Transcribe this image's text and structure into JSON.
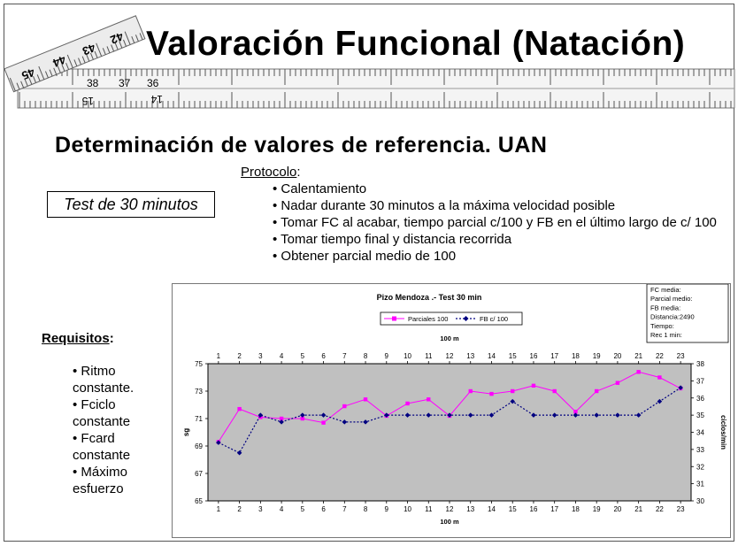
{
  "slide": {
    "title": "Valoración Funcional (Natación)",
    "subtitle": "Determinación de valores de referencia. UAN",
    "test_box": "Test de 30 minutos",
    "protocolo_heading": "Protocolo",
    "protocolo_colon": ":",
    "protocolo_items": [
      "Calentamiento",
      "Nadar durante 30 minutos a la máxima velocidad posible",
      "Tomar FC al acabar, tiempo parcial c/100 y FB en el último largo de c/ 100",
      "Tomar tiempo final y distancia recorrida",
      "Obtener parcial medio de 100"
    ],
    "requisitos_heading": "Requisitos",
    "requisitos_colon": ":",
    "requisitos_items": [
      "Ritmo constante.",
      "Fciclo constante",
      "Fcard constante",
      "Máximo esfuerzo"
    ],
    "ruler_numbers": [
      "45",
      "44",
      "43",
      "42",
      "38",
      "37",
      "36",
      "15",
      "14"
    ]
  },
  "chart_data": {
    "type": "line",
    "title": "Pizo Mendoza .- Test 30 min",
    "info_box": [
      "FC media:",
      "Parcial medio:",
      "FB media:",
      "Distancia:2490",
      "Tiempo:",
      "Rec 1 min:"
    ],
    "xlabel_top": "100 m",
    "xlabel_bottom": "100 m",
    "ylabel_left": "sg",
    "ylabel_right": "ciclos/min",
    "x": [
      1,
      2,
      3,
      4,
      5,
      6,
      7,
      8,
      9,
      10,
      11,
      12,
      13,
      14,
      15,
      16,
      17,
      18,
      19,
      20,
      21,
      22,
      23
    ],
    "ylim_left": [
      65,
      75
    ],
    "yticks_left": [
      65,
      67,
      69,
      71,
      73,
      75
    ],
    "ylim_right": [
      30,
      38
    ],
    "yticks_right": [
      30,
      31,
      32,
      33,
      34,
      35,
      36,
      37,
      38
    ],
    "series": [
      {
        "name": "Parciales 100",
        "axis": "left",
        "color": "#ff00ff",
        "values": [
          69.3,
          71.7,
          71.1,
          71.0,
          71.0,
          70.7,
          71.9,
          72.4,
          71.2,
          72.1,
          72.4,
          71.2,
          73.0,
          72.8,
          73.0,
          73.4,
          73.0,
          71.5,
          73.0,
          73.6,
          74.4,
          74.0,
          73.2
        ]
      },
      {
        "name": "FB c/ 100",
        "axis": "right",
        "color": "#000080",
        "values": [
          33.4,
          32.8,
          35.0,
          34.6,
          35.0,
          35.0,
          34.6,
          34.6,
          35.0,
          35.0,
          35.0,
          35.0,
          35.0,
          35.0,
          35.8,
          35.0,
          35.0,
          35.0,
          35.0,
          35.0,
          35.0,
          35.8,
          36.6
        ]
      }
    ],
    "plot_bg": "#c0c0c0"
  }
}
